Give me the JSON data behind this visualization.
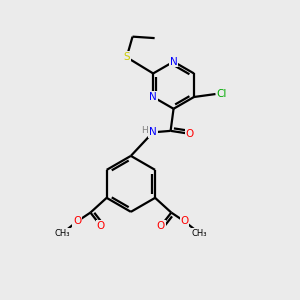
{
  "background_color": "#ebebeb",
  "bond_color": "#000000",
  "atom_colors": {
    "N": "#0000ff",
    "O": "#ff0000",
    "S": "#cccc00",
    "Cl": "#00aa00",
    "C": "#000000",
    "H": "#808080"
  },
  "figsize": [
    3.0,
    3.0
  ],
  "dpi": 100,
  "xlim": [
    0,
    10
  ],
  "ylim": [
    0,
    10
  ]
}
